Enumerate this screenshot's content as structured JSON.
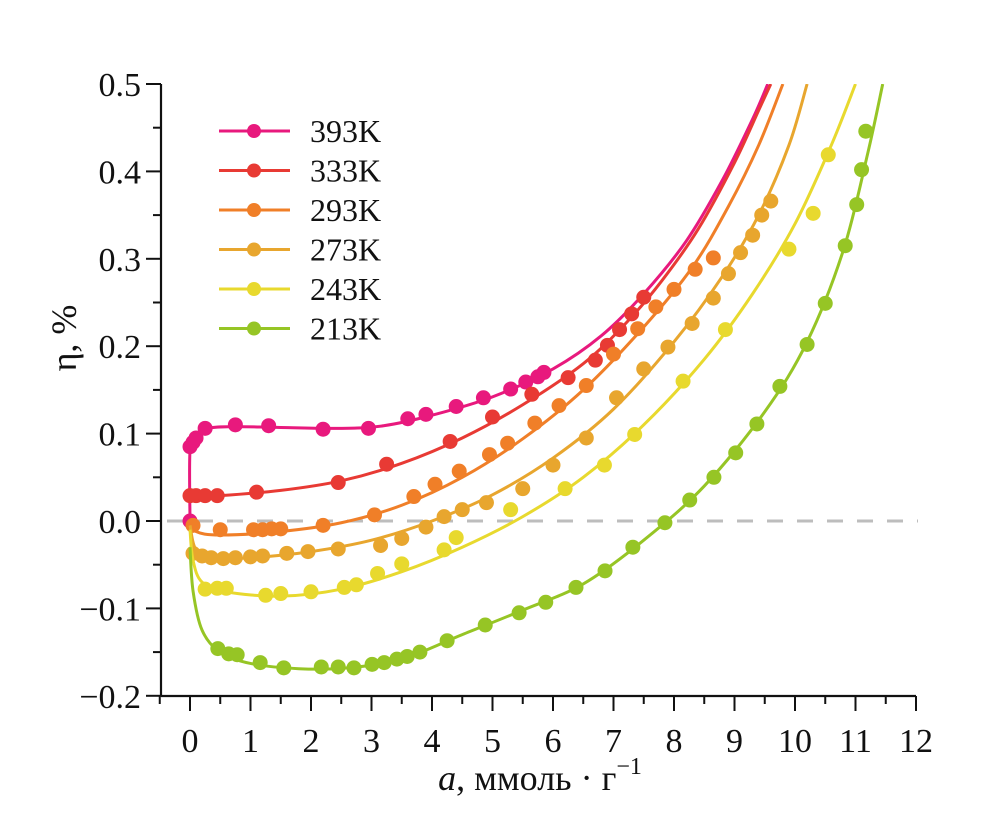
{
  "chart_data": {
    "type": "line",
    "title": "",
    "xlabel": "a, ммоль · г⁻¹",
    "xlabel_parts": {
      "var": "a",
      "rest": ", ммоль · г",
      "sup": "−1"
    },
    "ylabel": "η, %",
    "xlim": [
      -0.5,
      12
    ],
    "ylim": [
      -0.2,
      0.5
    ],
    "xticks": [
      0,
      1,
      2,
      3,
      4,
      5,
      6,
      7,
      8,
      9,
      10,
      11,
      12
    ],
    "xtick_labels": [
      "0",
      "1",
      "2",
      "3",
      "4",
      "5",
      "6",
      "7",
      "8",
      "9",
      "10",
      "11",
      "12"
    ],
    "yticks": [
      -0.2,
      -0.1,
      0.0,
      0.1,
      0.2,
      0.3,
      0.4,
      0.5
    ],
    "ytick_labels": [
      "−0.2",
      "−0.1",
      "0.0",
      "0.1",
      "0.2",
      "0.3",
      "0.4",
      "0.5"
    ],
    "reference_line": {
      "y": 0.0,
      "style": "dashed",
      "color": "#bdbdbd"
    },
    "grid": false,
    "legend_position": "top-left",
    "series": [
      {
        "name": "393K",
        "color": "#e8197d",
        "points": [
          [
            0,
            0.0
          ],
          [
            0,
            0.085
          ],
          [
            0.05,
            0.09
          ],
          [
            0.1,
            0.095
          ],
          [
            0.25,
            0.106
          ],
          [
            0.75,
            0.11
          ],
          [
            1.3,
            0.109
          ],
          [
            2.2,
            0.105
          ],
          [
            2.95,
            0.106
          ],
          [
            3.6,
            0.117
          ],
          [
            3.9,
            0.122
          ],
          [
            4.4,
            0.131
          ],
          [
            4.85,
            0.141
          ],
          [
            5.3,
            0.151
          ],
          [
            5.55,
            0.159
          ],
          [
            5.75,
            0.165
          ],
          [
            5.85,
            0.17
          ]
        ],
        "fit": [
          [
            0,
            0.0
          ],
          [
            0,
            0.08
          ],
          [
            0.1,
            0.098
          ],
          [
            0.3,
            0.106
          ],
          [
            0.7,
            0.108
          ],
          [
            1.5,
            0.107
          ],
          [
            2.5,
            0.106
          ],
          [
            3.2,
            0.109
          ],
          [
            4.0,
            0.121
          ],
          [
            5.0,
            0.142
          ],
          [
            6.0,
            0.174
          ],
          [
            6.8,
            0.212
          ],
          [
            7.5,
            0.26
          ],
          [
            8.2,
            0.32
          ],
          [
            8.8,
            0.39
          ],
          [
            9.3,
            0.46
          ],
          [
            9.55,
            0.5
          ]
        ]
      },
      {
        "name": "333K",
        "color": "#e83a34",
        "points": [
          [
            0,
            0.029
          ],
          [
            0.1,
            0.029
          ],
          [
            0.25,
            0.029
          ],
          [
            0.45,
            0.029
          ],
          [
            1.1,
            0.033
          ],
          [
            2.45,
            0.044
          ],
          [
            3.25,
            0.065
          ],
          [
            4.3,
            0.091
          ],
          [
            5.0,
            0.119
          ],
          [
            5.65,
            0.145
          ],
          [
            6.25,
            0.164
          ],
          [
            6.7,
            0.184
          ],
          [
            6.9,
            0.201
          ],
          [
            7.1,
            0.219
          ],
          [
            7.3,
            0.237
          ],
          [
            7.5,
            0.256
          ]
        ],
        "fit": [
          [
            0,
            0.028
          ],
          [
            0.5,
            0.029
          ],
          [
            1.5,
            0.035
          ],
          [
            2.5,
            0.046
          ],
          [
            3.5,
            0.066
          ],
          [
            4.5,
            0.095
          ],
          [
            5.5,
            0.133
          ],
          [
            6.5,
            0.18
          ],
          [
            7.2,
            0.226
          ],
          [
            7.8,
            0.275
          ],
          [
            8.4,
            0.334
          ],
          [
            9.0,
            0.41
          ],
          [
            9.4,
            0.47
          ],
          [
            9.6,
            0.5
          ]
        ]
      },
      {
        "name": "293K",
        "color": "#f07f28",
        "points": [
          [
            0.05,
            -0.005
          ],
          [
            0.5,
            -0.01
          ],
          [
            1.05,
            -0.01
          ],
          [
            1.2,
            -0.01
          ],
          [
            1.35,
            -0.009
          ],
          [
            1.5,
            -0.009
          ],
          [
            2.2,
            -0.005
          ],
          [
            3.05,
            0.007
          ],
          [
            3.7,
            0.028
          ],
          [
            4.05,
            0.042
          ],
          [
            4.45,
            0.057
          ],
          [
            4.95,
            0.076
          ],
          [
            5.25,
            0.089
          ],
          [
            5.7,
            0.112
          ],
          [
            6.1,
            0.132
          ],
          [
            6.55,
            0.155
          ],
          [
            7.0,
            0.191
          ],
          [
            7.4,
            0.22
          ],
          [
            7.7,
            0.245
          ],
          [
            8.0,
            0.265
          ],
          [
            8.35,
            0.288
          ],
          [
            8.65,
            0.301
          ]
        ],
        "fit": [
          [
            0,
            0.0
          ],
          [
            0.1,
            -0.012
          ],
          [
            0.5,
            -0.016
          ],
          [
            1.5,
            -0.012
          ],
          [
            2.5,
            -0.002
          ],
          [
            3.5,
            0.018
          ],
          [
            4.5,
            0.05
          ],
          [
            5.5,
            0.094
          ],
          [
            6.5,
            0.15
          ],
          [
            7.5,
            0.222
          ],
          [
            8.3,
            0.29
          ],
          [
            8.9,
            0.36
          ],
          [
            9.4,
            0.43
          ],
          [
            9.8,
            0.5
          ]
        ]
      },
      {
        "name": "273K",
        "color": "#e8a62e",
        "points": [
          [
            0.05,
            -0.037
          ],
          [
            0.2,
            -0.04
          ],
          [
            0.35,
            -0.042
          ],
          [
            0.55,
            -0.043
          ],
          [
            0.75,
            -0.042
          ],
          [
            1.0,
            -0.041
          ],
          [
            1.2,
            -0.04
          ],
          [
            1.6,
            -0.037
          ],
          [
            1.95,
            -0.035
          ],
          [
            2.45,
            -0.032
          ],
          [
            3.15,
            -0.028
          ],
          [
            3.5,
            -0.02
          ],
          [
            3.9,
            -0.007
          ],
          [
            4.2,
            0.005
          ],
          [
            4.5,
            0.013
          ],
          [
            4.9,
            0.021
          ],
          [
            5.5,
            0.037
          ],
          [
            6.0,
            0.064
          ],
          [
            6.55,
            0.095
          ],
          [
            7.05,
            0.141
          ],
          [
            7.5,
            0.174
          ],
          [
            7.9,
            0.199
          ],
          [
            8.3,
            0.226
          ],
          [
            8.65,
            0.255
          ],
          [
            8.9,
            0.283
          ],
          [
            9.1,
            0.307
          ],
          [
            9.3,
            0.327
          ],
          [
            9.45,
            0.35
          ],
          [
            9.6,
            0.366
          ]
        ],
        "fit": [
          [
            0,
            -0.005
          ],
          [
            0.1,
            -0.033
          ],
          [
            0.4,
            -0.042
          ],
          [
            1.0,
            -0.042
          ],
          [
            2.0,
            -0.035
          ],
          [
            3.0,
            -0.022
          ],
          [
            4.0,
            0.0
          ],
          [
            5.0,
            0.03
          ],
          [
            6.0,
            0.072
          ],
          [
            7.0,
            0.128
          ],
          [
            8.0,
            0.205
          ],
          [
            8.8,
            0.28
          ],
          [
            9.4,
            0.35
          ],
          [
            9.9,
            0.43
          ],
          [
            10.2,
            0.5
          ]
        ]
      },
      {
        "name": "243K",
        "color": "#e8d92e",
        "points": [
          [
            0.25,
            -0.078
          ],
          [
            0.45,
            -0.077
          ],
          [
            0.6,
            -0.077
          ],
          [
            1.25,
            -0.085
          ],
          [
            1.5,
            -0.083
          ],
          [
            2.0,
            -0.081
          ],
          [
            2.55,
            -0.076
          ],
          [
            2.75,
            -0.073
          ],
          [
            3.1,
            -0.06
          ],
          [
            3.5,
            -0.049
          ],
          [
            4.2,
            -0.033
          ],
          [
            4.4,
            -0.019
          ],
          [
            5.3,
            0.013
          ],
          [
            6.2,
            0.037
          ],
          [
            6.85,
            0.064
          ],
          [
            7.35,
            0.099
          ],
          [
            8.15,
            0.16
          ],
          [
            8.85,
            0.219
          ],
          [
            9.9,
            0.311
          ],
          [
            10.3,
            0.352
          ],
          [
            10.55,
            0.419
          ]
        ],
        "fit": [
          [
            0,
            -0.01
          ],
          [
            0.05,
            -0.045
          ],
          [
            0.2,
            -0.07
          ],
          [
            0.6,
            -0.081
          ],
          [
            1.5,
            -0.086
          ],
          [
            2.5,
            -0.078
          ],
          [
            3.5,
            -0.058
          ],
          [
            4.5,
            -0.03
          ],
          [
            5.5,
            0.005
          ],
          [
            6.5,
            0.05
          ],
          [
            7.5,
            0.11
          ],
          [
            8.5,
            0.185
          ],
          [
            9.3,
            0.26
          ],
          [
            10.0,
            0.34
          ],
          [
            10.6,
            0.43
          ],
          [
            11.0,
            0.5
          ]
        ]
      },
      {
        "name": "213K",
        "color": "#96c525",
        "points": [
          [
            0.46,
            -0.146
          ],
          [
            0.64,
            -0.152
          ],
          [
            0.78,
            -0.153
          ],
          [
            1.16,
            -0.162
          ],
          [
            1.55,
            -0.168
          ],
          [
            2.17,
            -0.167
          ],
          [
            2.45,
            -0.167
          ],
          [
            2.71,
            -0.168
          ],
          [
            3.01,
            -0.164
          ],
          [
            3.21,
            -0.162
          ],
          [
            3.42,
            -0.158
          ],
          [
            3.59,
            -0.155
          ],
          [
            3.8,
            -0.15
          ],
          [
            4.25,
            -0.137
          ],
          [
            4.88,
            -0.119
          ],
          [
            5.44,
            -0.105
          ],
          [
            5.88,
            -0.093
          ],
          [
            6.38,
            -0.076
          ],
          [
            6.86,
            -0.057
          ],
          [
            7.32,
            -0.03
          ],
          [
            7.85,
            -0.002
          ],
          [
            8.26,
            0.024
          ],
          [
            8.66,
            0.05
          ],
          [
            9.02,
            0.078
          ],
          [
            9.37,
            0.111
          ],
          [
            9.75,
            0.154
          ],
          [
            10.2,
            0.202
          ],
          [
            10.5,
            0.249
          ],
          [
            10.83,
            0.315
          ],
          [
            11.02,
            0.362
          ],
          [
            11.1,
            0.402
          ],
          [
            11.17,
            0.446
          ]
        ],
        "fit": [
          [
            0,
            -0.03
          ],
          [
            0.05,
            -0.08
          ],
          [
            0.2,
            -0.125
          ],
          [
            0.5,
            -0.15
          ],
          [
            1.0,
            -0.163
          ],
          [
            1.8,
            -0.169
          ],
          [
            2.6,
            -0.168
          ],
          [
            3.5,
            -0.158
          ],
          [
            4.5,
            -0.13
          ],
          [
            5.5,
            -0.102
          ],
          [
            6.5,
            -0.072
          ],
          [
            7.5,
            -0.022
          ],
          [
            8.5,
            0.04
          ],
          [
            9.5,
            0.125
          ],
          [
            10.2,
            0.205
          ],
          [
            10.8,
            0.31
          ],
          [
            11.2,
            0.42
          ],
          [
            11.45,
            0.5
          ]
        ]
      }
    ]
  }
}
